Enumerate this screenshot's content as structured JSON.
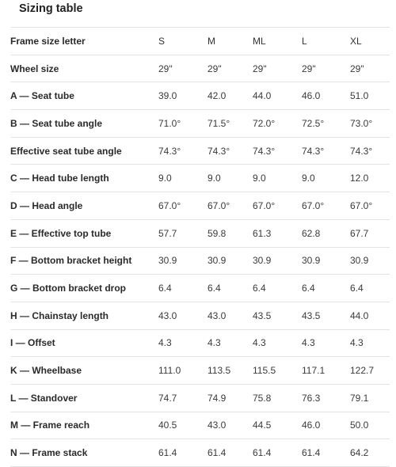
{
  "title": "Sizing table",
  "header": {
    "label": "Frame size letter",
    "sizes": [
      "S",
      "M",
      "ML",
      "L",
      "XL"
    ]
  },
  "rows": [
    {
      "label": "Wheel size",
      "values": [
        "29\"",
        "29\"",
        "29\"",
        "29\"",
        "29\""
      ]
    },
    {
      "label": "A — Seat tube",
      "values": [
        "39.0",
        "42.0",
        "44.0",
        "46.0",
        "51.0"
      ]
    },
    {
      "label": "B — Seat tube angle",
      "values": [
        "71.0°",
        "71.5°",
        "72.0°",
        "72.5°",
        "73.0°"
      ]
    },
    {
      "label": "Effective seat tube angle",
      "values": [
        "74.3°",
        "74.3°",
        "74.3°",
        "74.3°",
        "74.3°"
      ]
    },
    {
      "label": "C — Head tube length",
      "values": [
        "9.0",
        "9.0",
        "9.0",
        "9.0",
        "12.0"
      ]
    },
    {
      "label": "D — Head angle",
      "values": [
        "67.0°",
        "67.0°",
        "67.0°",
        "67.0°",
        "67.0°"
      ]
    },
    {
      "label": "E — Effective top tube",
      "values": [
        "57.7",
        "59.8",
        "61.3",
        "62.8",
        "67.7"
      ]
    },
    {
      "label": "F — Bottom bracket height",
      "values": [
        "30.9",
        "30.9",
        "30.9",
        "30.9",
        "30.9"
      ]
    },
    {
      "label": "G — Bottom bracket drop",
      "values": [
        "6.4",
        "6.4",
        "6.4",
        "6.4",
        "6.4"
      ]
    },
    {
      "label": "H — Chainstay length",
      "values": [
        "43.0",
        "43.0",
        "43.5",
        "43.5",
        "44.0"
      ]
    },
    {
      "label": "I — Offset",
      "values": [
        "4.3",
        "4.3",
        "4.3",
        "4.3",
        "4.3"
      ]
    },
    {
      "label": "K — Wheelbase",
      "values": [
        "111.0",
        "113.5",
        "115.5",
        "117.1",
        "122.7"
      ]
    },
    {
      "label": "L — Standover",
      "values": [
        "74.7",
        "74.9",
        "75.8",
        "76.3",
        "79.1"
      ]
    },
    {
      "label": "M — Frame reach",
      "values": [
        "40.5",
        "43.0",
        "44.5",
        "46.0",
        "50.0"
      ]
    },
    {
      "label": "N — Frame stack",
      "values": [
        "61.4",
        "61.4",
        "61.4",
        "61.4",
        "64.2"
      ]
    }
  ]
}
